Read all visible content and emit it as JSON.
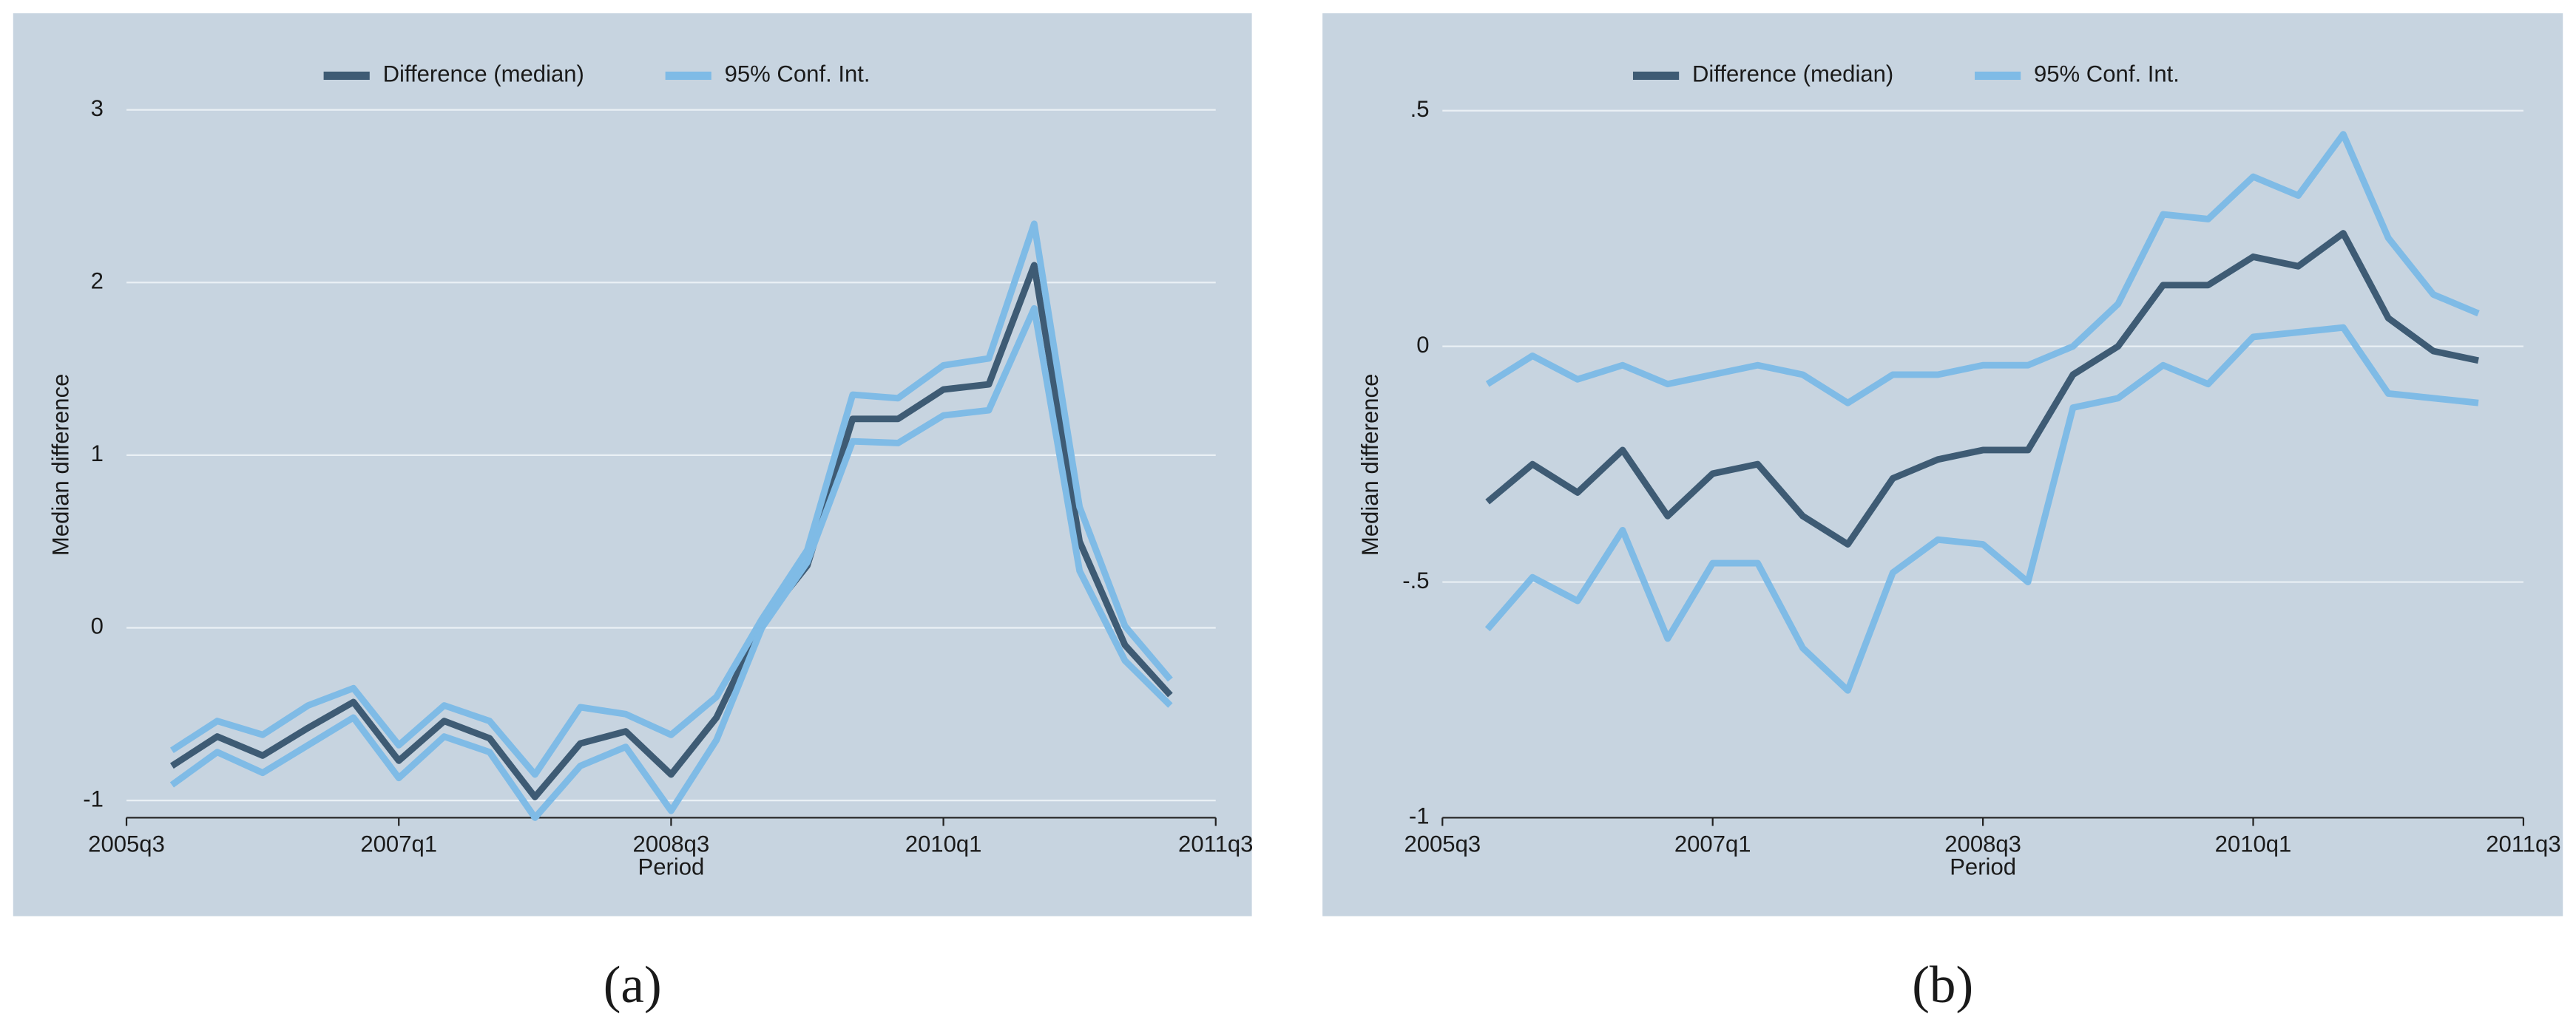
{
  "chart_data": [
    {
      "type": "line",
      "caption": "(a)",
      "x_label": "Period",
      "y_label": "Median difference",
      "x": [
        "2005q4",
        "2006q1",
        "2006q2",
        "2006q3",
        "2006q4",
        "2007q1",
        "2007q2",
        "2007q3",
        "2007q4",
        "2008q1",
        "2008q2",
        "2008q3",
        "2008q4",
        "2009q1",
        "2009q2",
        "2009q3",
        "2009q4",
        "2010q1",
        "2010q2",
        "2010q3",
        "2010q4",
        "2011q1",
        "2011q2"
      ],
      "xlim": [
        "2005q3",
        "2011q3"
      ],
      "xticks": [
        "2005q3",
        "2007q1",
        "2008q3",
        "2010q1",
        "2011q3"
      ],
      "ylim": [
        -1.1,
        3.35
      ],
      "yticks": [
        -1,
        0,
        1,
        2,
        3
      ],
      "grid": true,
      "legend": "top",
      "series": [
        {
          "name": "Difference (median)",
          "color": "#3e5b74",
          "values": [
            -0.8,
            -0.63,
            -0.74,
            -0.58,
            -0.43,
            -0.77,
            -0.54,
            -0.64,
            -0.98,
            -0.67,
            -0.6,
            -0.85,
            -0.52,
            0.03,
            0.36,
            1.21,
            1.21,
            1.38,
            1.41,
            2.1,
            0.5,
            -0.1,
            -0.39
          ]
        },
        {
          "name": "95% Conf. Int.",
          "color": "#7fbbe6",
          "upper": [
            -0.71,
            -0.54,
            -0.62,
            -0.45,
            -0.35,
            -0.68,
            -0.45,
            -0.54,
            -0.85,
            -0.46,
            -0.5,
            -0.62,
            -0.4,
            0.05,
            0.45,
            1.35,
            1.33,
            1.52,
            1.56,
            2.34,
            0.7,
            0.01,
            -0.3
          ],
          "lower": [
            -0.91,
            -0.72,
            -0.84,
            -0.68,
            -0.52,
            -0.87,
            -0.63,
            -0.72,
            -1.1,
            -0.8,
            -0.69,
            -1.06,
            -0.65,
            0.0,
            0.38,
            1.08,
            1.07,
            1.23,
            1.26,
            1.85,
            0.33,
            -0.19,
            -0.45
          ]
        }
      ]
    },
    {
      "type": "line",
      "caption": "(b)",
      "x_label": "Period",
      "y_label": "Median difference",
      "x": [
        "2005q4",
        "2006q1",
        "2006q2",
        "2006q3",
        "2006q4",
        "2007q1",
        "2007q2",
        "2007q3",
        "2007q4",
        "2008q1",
        "2008q2",
        "2008q3",
        "2008q4",
        "2009q1",
        "2009q2",
        "2009q3",
        "2009q4",
        "2010q1",
        "2010q2",
        "2010q3",
        "2010q4",
        "2011q1",
        "2011q2"
      ],
      "xlim": [
        "2005q3",
        "2011q3"
      ],
      "xticks": [
        "2005q3",
        "2007q1",
        "2008q3",
        "2010q1",
        "2011q3"
      ],
      "ylim": [
        -1,
        0.63
      ],
      "yticks": [
        -1,
        {
          "value": -0.5,
          "label": "-.5"
        },
        0,
        {
          "value": 0.5,
          "label": ".5"
        }
      ],
      "grid": true,
      "legend": "top",
      "series": [
        {
          "name": "Difference (median)",
          "color": "#3e5b74",
          "values": [
            -0.33,
            -0.25,
            -0.31,
            -0.22,
            -0.36,
            -0.27,
            -0.25,
            -0.36,
            -0.42,
            -0.28,
            -0.24,
            -0.22,
            -0.22,
            -0.06,
            0.0,
            0.13,
            0.13,
            0.19,
            0.17,
            0.24,
            0.06,
            -0.01,
            -0.03
          ]
        },
        {
          "name": "95% Conf. Int.",
          "color": "#7fbbe6",
          "upper": [
            -0.08,
            -0.02,
            -0.07,
            -0.04,
            -0.08,
            -0.06,
            -0.04,
            -0.06,
            -0.12,
            -0.06,
            -0.06,
            -0.04,
            -0.04,
            0.0,
            0.09,
            0.28,
            0.27,
            0.36,
            0.32,
            0.45,
            0.23,
            0.11,
            0.07
          ],
          "lower": [
            -0.6,
            -0.49,
            -0.54,
            -0.39,
            -0.62,
            -0.46,
            -0.46,
            -0.64,
            -0.73,
            -0.48,
            -0.41,
            -0.42,
            -0.5,
            -0.13,
            -0.11,
            -0.04,
            -0.08,
            0.02,
            0.03,
            0.04,
            -0.1,
            -0.11,
            -0.12
          ]
        }
      ]
    }
  ]
}
